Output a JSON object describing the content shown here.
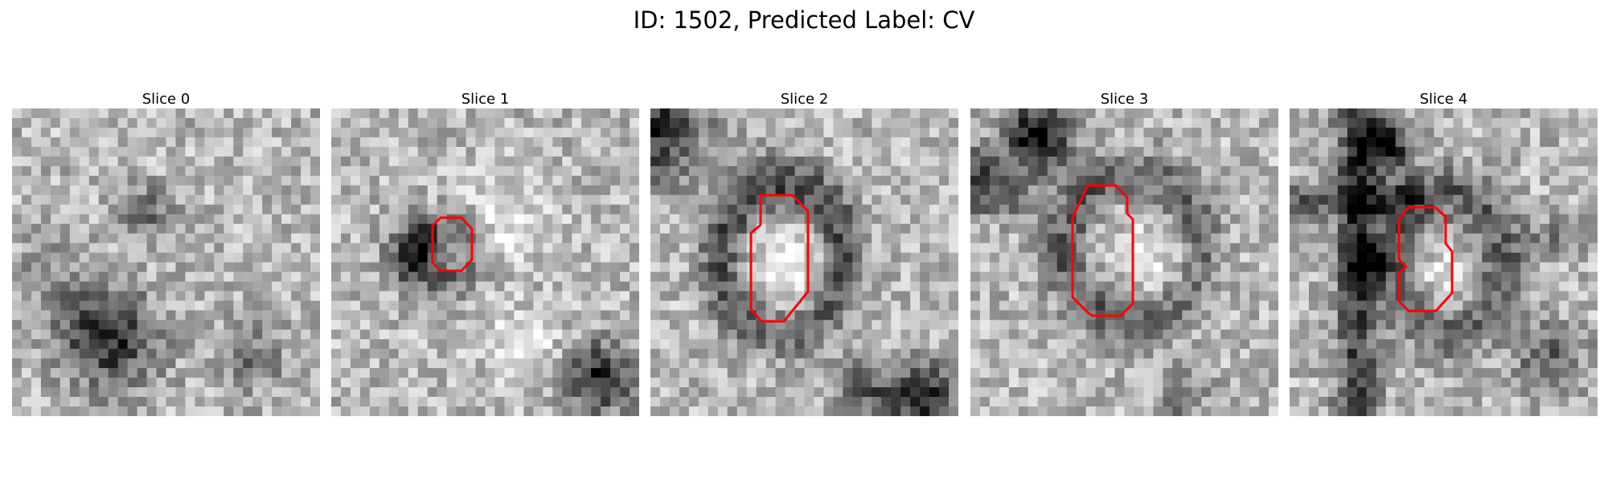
{
  "figure": {
    "title": "ID: 1502, Predicted Label: CV"
  },
  "colors": {
    "contour": "#ff0000",
    "background": "#ffffff"
  },
  "slices": [
    {
      "title": "Slice 0",
      "has_contour": false
    },
    {
      "title": "Slice 1",
      "has_contour": true
    },
    {
      "title": "Slice 2",
      "has_contour": true
    },
    {
      "title": "Slice 3",
      "has_contour": true
    },
    {
      "title": "Slice 4",
      "has_contour": true
    }
  ]
}
